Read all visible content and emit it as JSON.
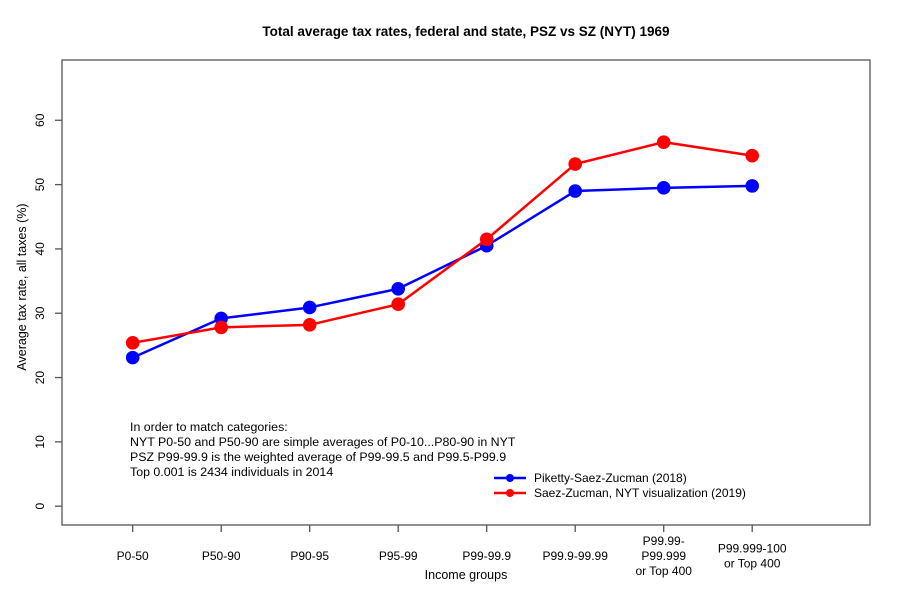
{
  "chart_data": {
    "type": "line",
    "title": "Total average tax rates, federal and state, PSZ vs SZ (NYT) 1969",
    "xlabel": "Income groups",
    "ylabel": "Average tax rate, all taxes (%)",
    "categories": [
      "P0-50",
      "P50-90",
      "P90-95",
      "P95-99",
      "P99-99.9",
      "P99.9-99.99",
      "P99.99-\nP99.999\nor Top 400",
      "P99.999-100\nor Top 400"
    ],
    "yticks": [
      0,
      10,
      20,
      30,
      40,
      50,
      60
    ],
    "ylim": [
      0,
      69
    ],
    "grid": false,
    "legend_position": "inside-bottom-right",
    "series": [
      {
        "name": "Piketty-Saez-Zucman (2018)",
        "color": "#0000ff",
        "marker": "circle",
        "values": [
          23.1,
          29.2,
          30.9,
          33.8,
          40.5,
          49.0,
          49.5,
          49.8
        ]
      },
      {
        "name": "Saez-Zucman, NYT visualization (2019)",
        "color": "#ff0000",
        "marker": "circle",
        "values": [
          25.4,
          27.8,
          28.2,
          31.4,
          41.5,
          53.2,
          56.6,
          54.5
        ]
      }
    ],
    "annotation": {
      "lines": [
        "In order to match categories:",
        "NYT P0-50 and P50-90 are simple averages of P0-10...P80-90 in NYT",
        "PSZ P99-99.9 is the weighted average of P99-99.5 and P99.5-P99.9",
        "Top 0.001 is 2434 individuals in 2014"
      ]
    }
  },
  "colors": {
    "axis": "#555555",
    "text": "#000000",
    "background": "#ffffff"
  }
}
